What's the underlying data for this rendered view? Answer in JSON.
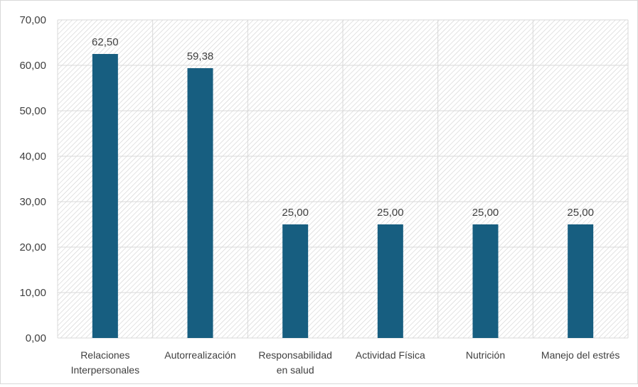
{
  "chart_data": {
    "type": "bar",
    "categories": [
      [
        "Relaciones",
        "Interpersonales"
      ],
      [
        "Autorrealización"
      ],
      [
        "Responsabilidad",
        "en salud"
      ],
      [
        "Actividad Física"
      ],
      [
        "Nutrición"
      ],
      [
        "Manejo del estrés"
      ]
    ],
    "values": [
      62.5,
      59.38,
      25.0,
      25.0,
      25.0,
      25.0
    ],
    "value_labels": [
      "62,50",
      "59,38",
      "25,00",
      "25,00",
      "25,00",
      "25,00"
    ],
    "y_tick_labels": [
      "0,00",
      "10,00",
      "20,00",
      "30,00",
      "40,00",
      "50,00",
      "60,00",
      "70,00"
    ],
    "ylim": [
      0,
      70
    ],
    "y_tick_step": 10,
    "title": "",
    "xlabel": "",
    "ylabel": "",
    "grid": true,
    "plot_background": "hatched",
    "colors": {
      "bar": "#175e80",
      "grid": "#d9d9d9",
      "hatch": "#d0d0d0",
      "text": "#404040"
    }
  }
}
